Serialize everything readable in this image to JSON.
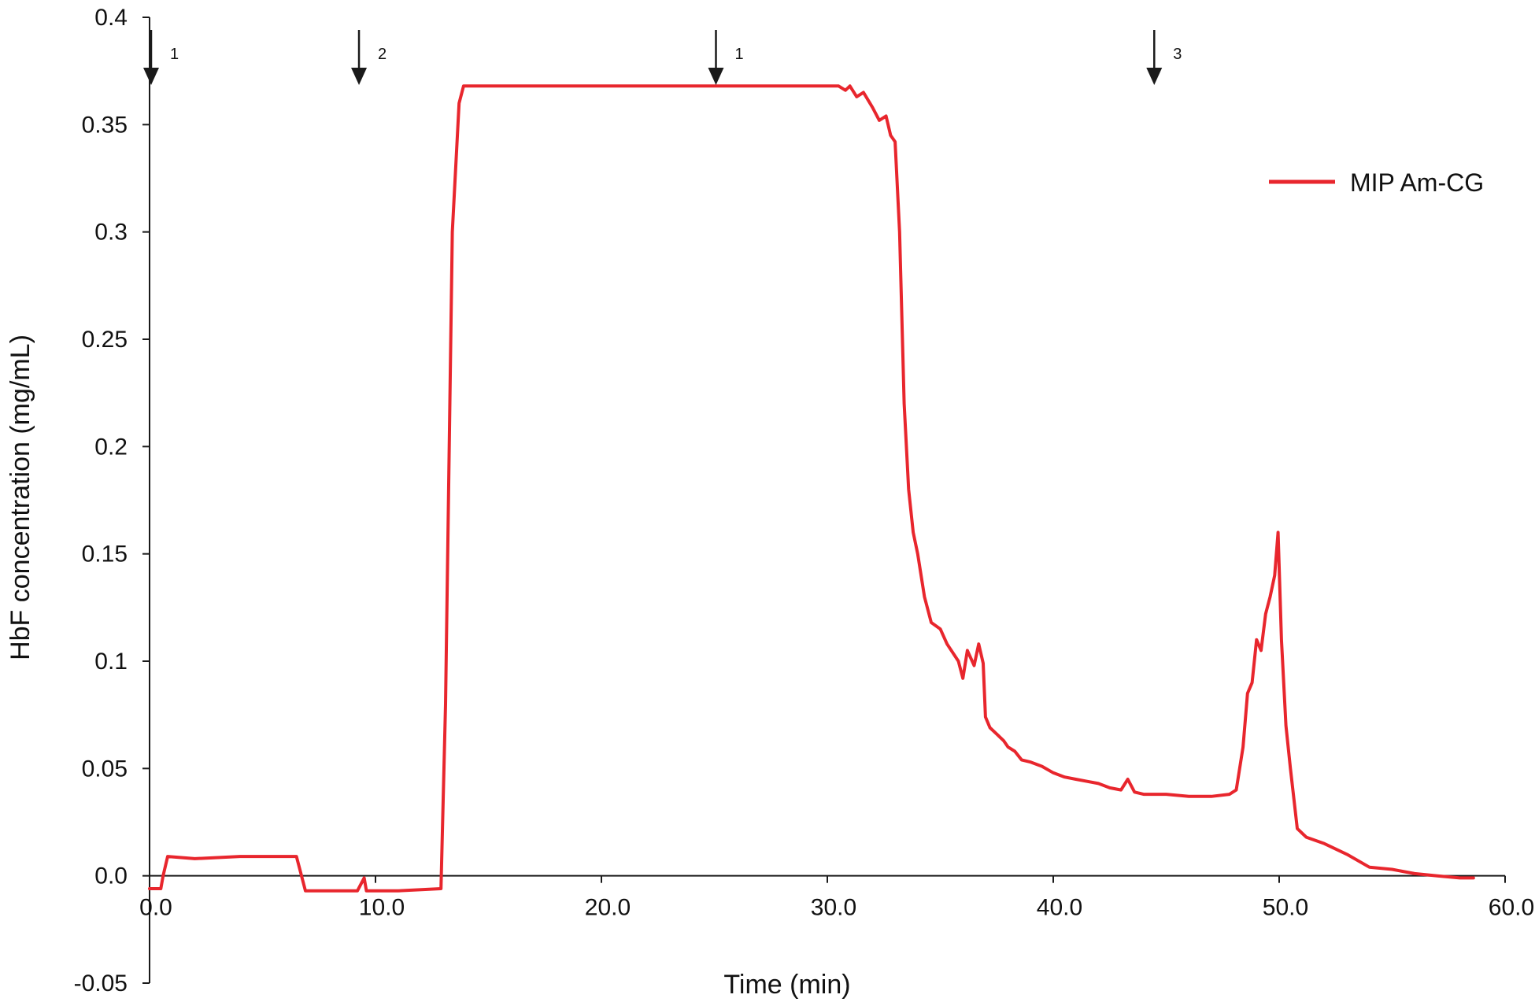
{
  "chart_data": {
    "type": "line",
    "title": "",
    "xlabel": "Time (min)",
    "ylabel": "HbF concentration (mg/mL)",
    "xlim": [
      0,
      60
    ],
    "ylim": [
      -0.05,
      0.4
    ],
    "x_ticks": [
      0,
      10,
      20,
      30,
      40,
      50,
      60
    ],
    "x_tick_labels": [
      "0.0",
      "10.0",
      "20.0",
      "30.0",
      "40.0",
      "50.0",
      "60.0"
    ],
    "y_ticks": [
      -0.05,
      0,
      0.05,
      0.1,
      0.15,
      0.2,
      0.25,
      0.3,
      0.35,
      0.4
    ],
    "y_tick_labels": [
      "-0.05",
      "0.0",
      "0.05",
      "0.1",
      "0.15",
      "0.2",
      "0.25",
      "0.3",
      "0.35",
      "0.4"
    ],
    "grid": false,
    "legend_position": "top-right",
    "series": [
      {
        "name": "MIP Am-CG",
        "color": "#e8262d",
        "x": [
          0,
          0.5,
          0.6,
          0.8,
          2,
          4,
          6.5,
          6.7,
          6.9,
          8,
          9.2,
          9.5,
          9.6,
          9.8,
          11,
          12.9,
          13.1,
          13.4,
          13.7,
          13.9,
          14.2,
          30.5,
          30.8,
          31.0,
          31.3,
          31.6,
          32.0,
          32.3,
          32.6,
          32.8,
          33.0,
          33.2,
          33.4,
          33.6,
          33.8,
          34.0,
          34.3,
          34.6,
          35.0,
          35.3,
          35.8,
          36.0,
          36.2,
          36.5,
          36.7,
          36.9,
          37.0,
          37.2,
          37.5,
          37.8,
          38.0,
          38.3,
          38.6,
          39.0,
          39.5,
          40.0,
          40.5,
          41.0,
          41.5,
          42.0,
          42.5,
          43.0,
          43.3,
          43.6,
          44.0,
          45.0,
          46.0,
          47.0,
          47.8,
          48.1,
          48.4,
          48.6,
          48.8,
          49.0,
          49.2,
          49.4,
          49.6,
          49.8,
          49.95,
          50.1,
          50.3,
          50.5,
          50.8,
          51.2,
          52.0,
          53.0,
          54.0,
          55.0,
          56.0,
          57.0,
          58.0,
          58.6
        ],
        "y": [
          -0.006,
          -0.006,
          0.0,
          0.009,
          0.008,
          0.009,
          0.009,
          0.001,
          -0.007,
          -0.007,
          -0.007,
          -0.001,
          -0.007,
          -0.007,
          -0.007,
          -0.006,
          0.08,
          0.3,
          0.36,
          0.368,
          0.368,
          0.368,
          0.366,
          0.368,
          0.363,
          0.365,
          0.358,
          0.352,
          0.354,
          0.345,
          0.342,
          0.3,
          0.22,
          0.18,
          0.16,
          0.15,
          0.13,
          0.118,
          0.115,
          0.108,
          0.1,
          0.092,
          0.105,
          0.098,
          0.108,
          0.099,
          0.074,
          0.069,
          0.066,
          0.063,
          0.06,
          0.058,
          0.054,
          0.053,
          0.051,
          0.048,
          0.046,
          0.045,
          0.044,
          0.043,
          0.041,
          0.04,
          0.045,
          0.039,
          0.038,
          0.038,
          0.037,
          0.037,
          0.038,
          0.04,
          0.06,
          0.085,
          0.09,
          0.11,
          0.105,
          0.122,
          0.13,
          0.14,
          0.16,
          0.11,
          0.07,
          0.05,
          0.022,
          0.018,
          0.015,
          0.01,
          0.004,
          0.003,
          0.001,
          0.0,
          -0.001,
          -0.001
        ]
      }
    ],
    "annotations": [
      {
        "x": 0.0,
        "label": "1"
      },
      {
        "x": 9.2,
        "label": "2"
      },
      {
        "x": 25.0,
        "label": "1"
      },
      {
        "x": 44.4,
        "label": "3"
      }
    ],
    "arrow_color": "#1a1a1a",
    "axis_color": "#1a1a1a"
  }
}
